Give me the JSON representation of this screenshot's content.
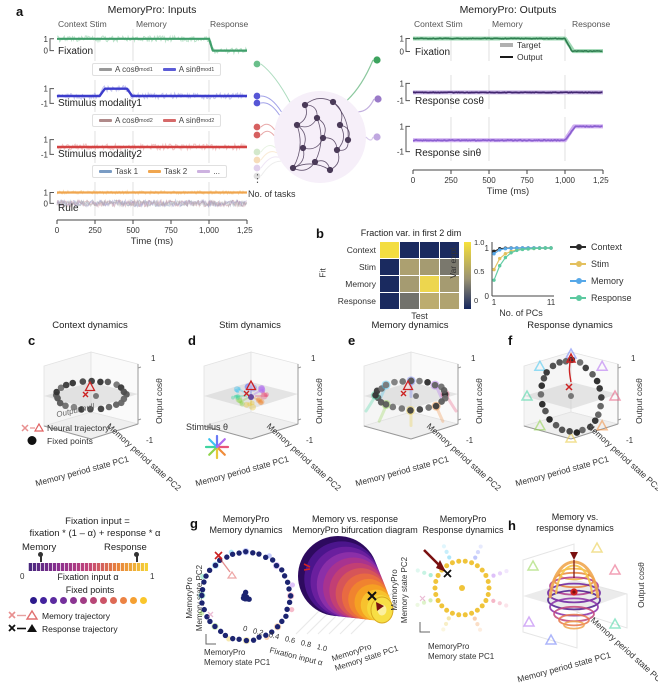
{
  "colors": {
    "green": "#3f9e6a",
    "green_light": "#aadcbd",
    "blue": "#3c3ccc",
    "blue_light": "#b2b2ea",
    "red": "#d44343",
    "red_light": "#eeb0b0",
    "orange": "#f0a64f",
    "orange_light": "#f7d6a6",
    "purple_dark": "#40256e",
    "purple": "#8a5fd0",
    "purple_light": "#cfaef0",
    "target_gray": "#b0b0b0",
    "output_black": "#1a1a1a",
    "heat_low": "#15265e",
    "heat_high": "#f7e13a",
    "context": "#2b2b2b",
    "stim": "#e3c05e",
    "memory": "#56a8e8",
    "response": "#5cc9a0",
    "red_marker": "#cc2222",
    "dark_red": "#7a1010",
    "navy_dot": "#1c2470",
    "yellow_dot": "#f0c43a"
  },
  "panel_labels": {
    "a": "a",
    "b": "b",
    "c": "c",
    "d": "d",
    "e": "e",
    "f": "f",
    "g": "g",
    "h": "h"
  },
  "panel_a": {
    "inputs": {
      "title": "MemoryPro: Inputs",
      "phases": [
        "Context Stim",
        "Memory",
        "Response"
      ],
      "xlabel": "Time (ms)",
      "xticks": [
        "0",
        "250",
        "500",
        "750",
        "1,000",
        "1,250"
      ],
      "rows": [
        {
          "label": "Fixation",
          "yticks": [
            "1",
            "0"
          ]
        },
        {
          "label": "Stimulus modality1",
          "yticks": [
            "1",
            "-1"
          ],
          "legend": [
            {
              "main": "A cosθ",
              "sub": "mod1"
            },
            {
              "main": "A sinθ",
              "sub": "mod1"
            }
          ]
        },
        {
          "label": "Stimulus modality2",
          "yticks": [
            "1",
            "-1"
          ],
          "legend": [
            {
              "main": "A cosθ",
              "sub": "mod2"
            },
            {
              "main": "A sinθ",
              "sub": "mod2"
            }
          ]
        },
        {
          "label": "Rule",
          "yticks": [
            "1",
            "0"
          ],
          "legend": [
            {
              "main": "Task 1"
            },
            {
              "main": "Task 2"
            },
            {
              "main": "..."
            }
          ]
        }
      ]
    },
    "network": {
      "tasks_label": "No. of tasks",
      "dots": "⋮"
    },
    "outputs": {
      "title": "MemoryPro: Outputs",
      "phases": [
        "Context Stim",
        "Memory",
        "Response"
      ],
      "xlabel": "Time (ms)",
      "xticks": [
        "0",
        "250",
        "500",
        "750",
        "1,000",
        "1,250"
      ],
      "legend": [
        "Target",
        "Output"
      ],
      "rows": [
        {
          "label": "Fixation",
          "yticks": [
            "1",
            "0"
          ]
        },
        {
          "label": "Response cosθ",
          "yticks": [
            "1",
            "-1"
          ]
        },
        {
          "label": "Response sinθ",
          "yticks": [
            "1",
            "-1"
          ]
        }
      ]
    }
  },
  "panel_b": {
    "heatmap": {
      "title": "Fraction var. in first 2 dim",
      "ylabel": "Fit",
      "xlabel": "Test",
      "row_labels": [
        "Context",
        "Stim",
        "Memory",
        "Response"
      ],
      "colorbar_ticks": [
        "1.0",
        "0.5",
        "0"
      ]
    },
    "pcs": {
      "ylabel": "Var expl.",
      "yticks": [
        "1",
        "0"
      ],
      "xticks": [
        "1",
        "11"
      ],
      "xlabel": "No. of PCs",
      "legend": [
        "Context",
        "Stim",
        "Memory",
        "Response"
      ]
    }
  },
  "panel_c": {
    "title": "Context dynamics",
    "zlabel": "Output cosθ",
    "zticks": [
      "1",
      "-1"
    ],
    "xlabel": "Memory period state PC1",
    "ylabel": "Memory period state PC2",
    "inner_label": "Output null",
    "legend": [
      {
        "label": "Neural trajectory"
      },
      {
        "label": "Fixed points"
      }
    ]
  },
  "panel_d": {
    "title": "Stim dynamics",
    "zlabel": "Output cosθ",
    "zticks": [
      "1",
      "-1"
    ],
    "xlabel": "Memory period state PC1",
    "ylabel": "Memory period state PC2",
    "stim_label": "Stimulus θ"
  },
  "panel_e": {
    "title": "Memory dynamics",
    "zlabel": "Output cosθ",
    "zticks": [
      "1",
      "-1"
    ],
    "xlabel": "Memory period state PC1",
    "ylabel": "Memory period state PC2"
  },
  "panel_f": {
    "title": "Response dynamics",
    "zlabel": "Output cosθ",
    "zticks": [
      "1",
      "-1"
    ],
    "xlabel": "Memory period state PC1",
    "ylabel": "Memory period state PC2"
  },
  "bottom_legend": {
    "line1": "Fixation input =",
    "line2": "fixation * (1 – α) + response * α",
    "memory": "Memory",
    "response": "Response",
    "alpha_left": "0",
    "alpha_label": "Fixation input α",
    "alpha_right": "1",
    "fixed_points": "Fixed points",
    "memory_traj": "Memory trajectory",
    "response_traj": "Response trajectory"
  },
  "panel_g": {
    "g1": {
      "title1": "MemoryPro",
      "title2": "Memory dynamics",
      "ylabel1": "MemoryPro",
      "ylabel2": "Memory state PC2",
      "xlabel1": "MemoryPro",
      "xlabel2": "Memory state PC1"
    },
    "g2": {
      "title1": "Memory vs. response",
      "title2": "MemoryPro bifurcation diagram",
      "alpha_ticks": [
        "0",
        "0.2",
        "0.4",
        "0.6",
        "0.8",
        "1.0"
      ],
      "alpha_label": "Fixation input α",
      "right_label1": "MemoryPro",
      "right_label2": "Memory state PC1"
    },
    "g3": {
      "title1": "MemoryPro",
      "title2": "Response dynamics",
      "ylabel1": "MemoryPro",
      "ylabel2": "Memory state PC2",
      "xlabel1": "MemoryPro",
      "xlabel2": "Memory state PC1"
    }
  },
  "panel_h": {
    "title1": "Memory vs.",
    "title2": "response dynamics",
    "zlabel": "Output cosθ",
    "xlabel": "Memory period state PC1",
    "ylabel": "Memory period state PC2"
  },
  "chart_data": [
    {
      "id": "inputs",
      "type": "line",
      "xlabel": "Time (ms)",
      "x_range_ms": [
        0,
        1250
      ],
      "phase_boundaries_ms": [
        250,
        500,
        1000
      ],
      "rows": [
        {
          "name": "Fixation",
          "ylim": [
            0,
            1
          ],
          "segments_ms_value": [
            [
              0,
              1000,
              1
            ],
            [
              1000,
              1250,
              0
            ]
          ]
        },
        {
          "name": "Stimulus modality1",
          "ylim": [
            -1,
            1
          ],
          "segments_ms_value": [
            [
              0,
              280,
              0
            ],
            [
              280,
              460,
              1
            ],
            [
              460,
              1250,
              0
            ]
          ]
        },
        {
          "name": "Stimulus modality2",
          "ylim": [
            -1,
            1
          ],
          "segments_ms_value": [
            [
              0,
              1250,
              0
            ]
          ]
        },
        {
          "name": "Rule (Task 2 active)",
          "ylim": [
            0,
            1
          ],
          "segments_ms_value": [
            [
              0,
              1250,
              1
            ]
          ]
        }
      ]
    },
    {
      "id": "outputs",
      "type": "line",
      "xlabel": "Time (ms)",
      "x_range_ms": [
        0,
        1250
      ],
      "phase_boundaries_ms": [
        250,
        500,
        1000
      ],
      "rows": [
        {
          "name": "Fixation",
          "ylim": [
            0,
            1
          ],
          "segments_ms_value": [
            [
              0,
              1000,
              1
            ],
            [
              1000,
              1250,
              0.03
            ]
          ]
        },
        {
          "name": "Response cosθ",
          "ylim": [
            -1,
            1
          ],
          "segments_ms_value": [
            [
              0,
              1250,
              -0.05
            ]
          ]
        },
        {
          "name": "Response sinθ",
          "ylim": [
            -1,
            1
          ],
          "segments_ms_value": [
            [
              0,
              1000,
              -0.1
            ],
            [
              1000,
              1250,
              1
            ]
          ]
        }
      ]
    },
    {
      "id": "fraction_var_heatmap",
      "type": "heatmap",
      "fit_rows": [
        "Context",
        "Stim",
        "Memory",
        "Response"
      ],
      "test_cols": [
        "Context",
        "Stim",
        "Memory",
        "Response"
      ],
      "values": [
        [
          0.97,
          0.02,
          0.02,
          0.02
        ],
        [
          0.02,
          0.58,
          0.55,
          0.38
        ],
        [
          0.02,
          0.55,
          0.92,
          0.55
        ],
        [
          0.02,
          0.35,
          0.65,
          0.6
        ]
      ],
      "vmin": 0,
      "vmax": 1
    },
    {
      "id": "var_explained",
      "type": "line",
      "xlabel": "No. of PCs",
      "ylabel": "Var expl.",
      "x": [
        1,
        2,
        3,
        4,
        5,
        6,
        7,
        8,
        9,
        10,
        11
      ],
      "ylim": [
        0,
        1
      ],
      "series": [
        {
          "name": "Context",
          "values": [
            0.93,
            0.985,
            0.995,
            1,
            1,
            1,
            1,
            1,
            1,
            1,
            1
          ]
        },
        {
          "name": "Stim",
          "values": [
            0.55,
            0.78,
            0.88,
            0.93,
            0.96,
            0.975,
            0.985,
            0.99,
            0.995,
            1,
            1
          ]
        },
        {
          "name": "Memory",
          "values": [
            0.88,
            0.96,
            0.985,
            0.995,
            1,
            1,
            1,
            1,
            1,
            1,
            1
          ]
        },
        {
          "name": "Response",
          "values": [
            0.33,
            0.63,
            0.8,
            0.9,
            0.95,
            0.97,
            0.98,
            0.99,
            0.995,
            1,
            1
          ]
        }
      ]
    }
  ]
}
